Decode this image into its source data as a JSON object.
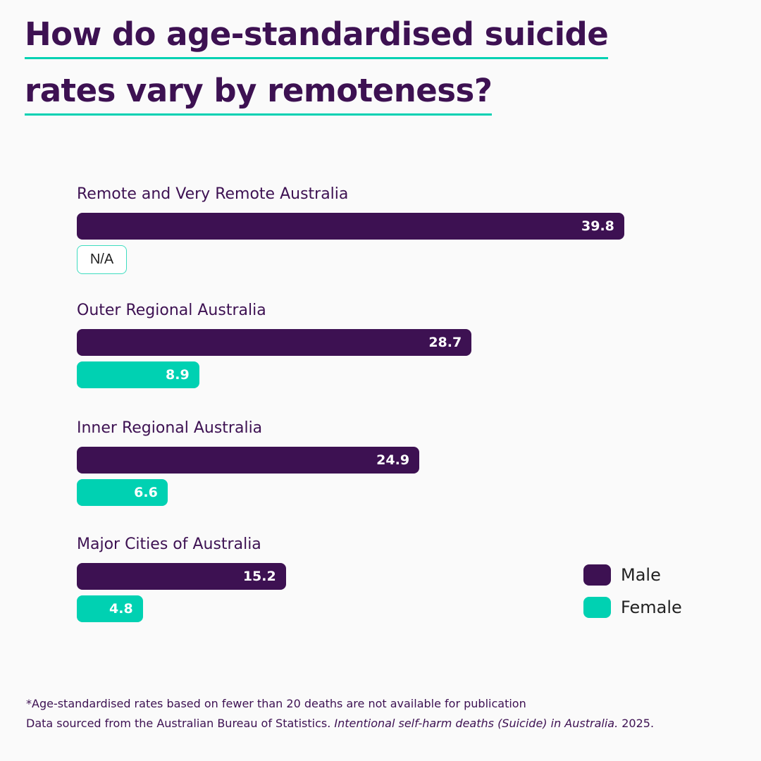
{
  "chart_data": {
    "type": "bar",
    "orientation": "horizontal",
    "title": "How do age-standardised suicide rates vary by remoteness?",
    "title_lines": [
      "How do age-standardised suicide",
      "rates vary by remoteness?"
    ],
    "categories": [
      "Remote and Very Remote Australia",
      "Outer Regional Australia",
      "Inner Regional Australia",
      "Major Cities of Australia"
    ],
    "series": [
      {
        "name": "Male",
        "color": "#3d1152",
        "values": [
          39.8,
          28.7,
          24.9,
          15.2
        ],
        "labels": [
          "39.8",
          "28.7",
          "24.9",
          "15.2"
        ]
      },
      {
        "name": "Female",
        "color": "#00d1b2",
        "values": [
          null,
          8.9,
          6.6,
          4.8
        ],
        "labels": [
          "N/A",
          "8.9",
          "6.6",
          "4.8"
        ]
      }
    ],
    "legend": {
      "position": "bottom-right",
      "entries": [
        "Male",
        "Female"
      ]
    },
    "grid": false,
    "xlim": [
      0,
      40
    ],
    "footnotes": {
      "note": "*Age-standardised rates based on fewer than 20 deaths are not available for publication",
      "source_prefix": "Data sourced from the Australian Bureau of Statistics.",
      "source_title": "Intentional self-harm deaths (Suicide) in Australia.",
      "source_year": "2025."
    }
  }
}
